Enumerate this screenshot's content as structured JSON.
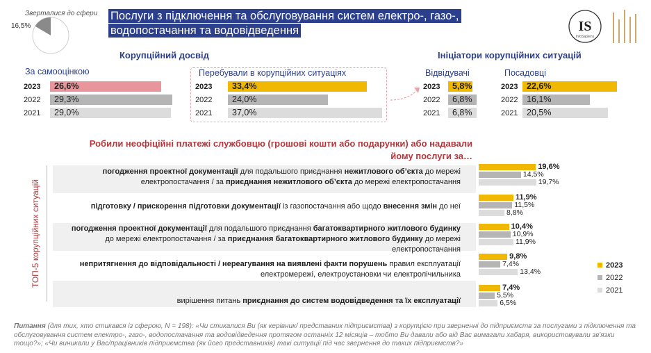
{
  "header": {
    "reach_label": "Зверталися до сфери",
    "reach_pct": "16,5%",
    "reach_share": 16.5,
    "title": "Послуги з підключення та обслуговування систем електро-, газо-, водопостачання та водовідведення",
    "logo_letters": "IS",
    "logo_sub": "InfoSapiens"
  },
  "colors": {
    "accent_gold": "#f0b800",
    "self_2023": "#e8969c",
    "gray_2022": "#b5b5b5",
    "gray_2021": "#dcdcdc",
    "title_bg": "#2b3f8c"
  },
  "corruption_experience": {
    "title": "Корупційний досвід",
    "self": {
      "label": "За самооцінкою",
      "rows": [
        {
          "year": "2023",
          "value": 26.6,
          "label": "26,6%"
        },
        {
          "year": "2022",
          "value": 29.3,
          "label": "29,3%"
        },
        {
          "year": "2021",
          "value": 29.0,
          "label": "29,0%"
        }
      ]
    },
    "situations": {
      "label": "Перебували в корупційних ситуаціях",
      "rows": [
        {
          "year": "2023",
          "value": 33.4,
          "label": "33,4%"
        },
        {
          "year": "2022",
          "value": 24.0,
          "label": "24,0%"
        },
        {
          "year": "2021",
          "value": 37.0,
          "label": "37,0%"
        }
      ]
    }
  },
  "initiators": {
    "title": "Ініціатори корупційних ситуацій",
    "visitors": {
      "label": "Відвідувачі",
      "rows": [
        {
          "year": "2023",
          "value": 5.8,
          "label": "5,8%"
        },
        {
          "year": "2022",
          "value": 6.8,
          "label": "6,8%"
        },
        {
          "year": "2021",
          "value": 6.8,
          "label": "6,8%"
        }
      ]
    },
    "officials": {
      "label": "Посадовці",
      "rows": [
        {
          "year": "2023",
          "value": 22.6,
          "label": "22,6%"
        },
        {
          "year": "2022",
          "value": 16.1,
          "label": "16,1%"
        },
        {
          "year": "2021",
          "value": 20.5,
          "label": "20,5%"
        }
      ]
    }
  },
  "question": "Робили неофіційні платежі службовцю (грошові кошти або подарунки) або надавали йому послуги за…",
  "side_label": "ТОП-5 корупційних ситуацій",
  "legend": [
    "2023",
    "2022",
    "2021"
  ],
  "chart_data": {
    "type": "bar",
    "categories": [
      "погодження проектної документації для подальшого приєднання нежитлового об’єкта до мережі електропостачання / за приєднання нежитлового об’єкта до мережі електропостачання",
      "підготовку / прискорення підготовки документації із газопостачання або щодо внесення змін до неї",
      "погодження проектної документації для подальшого приєднання багатоквартирного житлового будинку до мережі електропостачання / за приєднання багатоквартирного житлового будинку до мережі електропостачання",
      "непритягнення до відповідальності / нереагування на виявлені факти порушень правил експлуатації електромережі, електроустановки чи електролічильника",
      "вирішення питань приєднання до систем водовідведення та їх експлуатації"
    ],
    "series": [
      {
        "name": "2023",
        "values": [
          19.6,
          11.9,
          10.4,
          9.8,
          7.4
        ],
        "labels": [
          "19,6%",
          "11,9%",
          "10,4%",
          "9,8%",
          "7,4%"
        ]
      },
      {
        "name": "2022",
        "values": [
          14.5,
          11.5,
          10.9,
          7.4,
          5.5
        ],
        "labels": [
          "14,5%",
          "11,5%",
          "10,9%",
          "7,4%",
          "5,5%"
        ]
      },
      {
        "name": "2021",
        "values": [
          19.7,
          8.8,
          11.9,
          13.4,
          6.5
        ],
        "labels": [
          "19,7%",
          "8,8%",
          "11,9%",
          "13,4%",
          "6,5%"
        ]
      }
    ]
  },
  "footnote": {
    "lead": "Питання",
    "text": " (для тих, хто стикався із сферою, N = 198): «Чи стикалися Ви (як керівник/ представник підприємства) з корупцією при зверненні до підприємств за послугами з підключення та обслуговування систем електро-, газо-, водопостачання та водовідведення протягом останніх 12 місяців – тобто Ви давали або від Вас вимагали хабаря, використовували зв'язки тощо?»; «Чи виникали у Вас/працівників підприємства (як його представників) такі ситуації під час звернення до таких підприємств?»"
  }
}
